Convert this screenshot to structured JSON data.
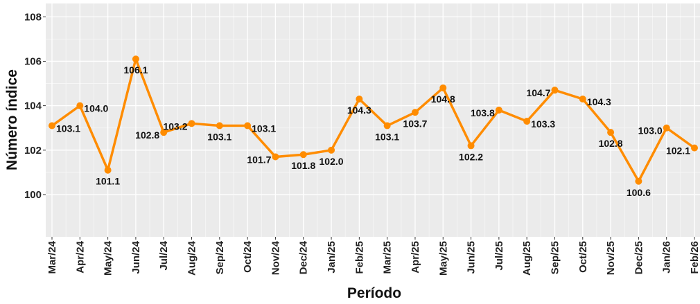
{
  "chart_data": {
    "type": "line",
    "x_label": "Período",
    "y_label": "Número índice",
    "categories": [
      "Mar/24",
      "Apr/24",
      "May/24",
      "Jun/24",
      "Jul/24",
      "Aug/24",
      "Sep/24",
      "Oct/24",
      "Nov/24",
      "Dec/24",
      "Jan/25",
      "Feb/25",
      "Mar/25",
      "Apr/25",
      "May/25",
      "Jun/25",
      "Jul/25",
      "Aug/25",
      "Sep/25",
      "Oct/25",
      "Nov/25",
      "Dec/25",
      "Jan/26",
      "Feb/26"
    ],
    "series": [
      {
        "name": "Número índice",
        "color": "#ff8c00",
        "values": [
          103.1,
          104.0,
          101.1,
          106.1,
          102.8,
          103.2,
          103.1,
          103.1,
          101.7,
          101.8,
          102.0,
          104.3,
          103.1,
          103.7,
          104.8,
          102.2,
          103.8,
          103.3,
          104.7,
          104.3,
          102.8,
          100.6,
          103.0,
          102.1
        ],
        "value_labels": [
          "103.1",
          "104.0",
          "101.1",
          "106.1",
          "102.8",
          "103.2",
          "103.1",
          "103.1",
          "101.7",
          "101.8",
          "102.0",
          "104.3",
          "103.1",
          "103.7",
          "104.8",
          "102.2",
          "103.8",
          "103.3",
          "104.7",
          "104.3",
          "102.8",
          "100.6",
          "103.0",
          "102.1"
        ]
      }
    ],
    "ylim": [
      98.1,
      108.6
    ],
    "yticks": [
      100,
      102,
      104,
      106,
      108
    ],
    "grid": true
  }
}
